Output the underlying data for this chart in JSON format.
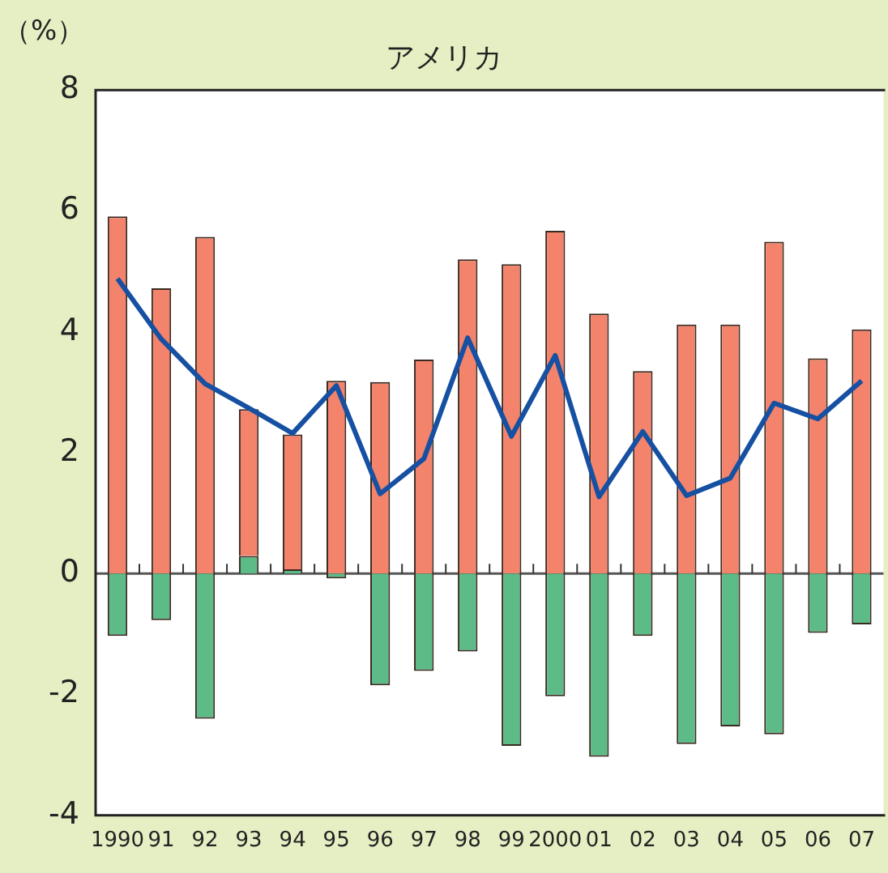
{
  "chart_data": {
    "type": "bar",
    "title": "アメリカ",
    "ylabel": "（%）",
    "stacked": true,
    "categories": [
      "1990",
      "91",
      "92",
      "93",
      "94",
      "95",
      "96",
      "97",
      "98",
      "99",
      "2000",
      "01",
      "02",
      "03",
      "04",
      "05",
      "06",
      "07"
    ],
    "series": [
      {
        "color": "#5cbb86",
        "values": [
          -1.03,
          -0.77,
          -2.4,
          0.29,
          0.07,
          -0.08,
          -1.85,
          -1.61,
          -1.29,
          -2.85,
          -2.03,
          -3.03,
          -1.03,
          -2.82,
          -2.53,
          -2.66,
          -0.98,
          -0.84
        ]
      },
      {
        "color": "#f4836b",
        "values": [
          5.91,
          4.72,
          5.57,
          2.43,
          2.23,
          3.19,
          3.17,
          3.54,
          5.2,
          5.12,
          5.67,
          4.3,
          3.35,
          4.12,
          4.12,
          5.49,
          3.56,
          4.04
        ]
      },
      {
        "type": "line",
        "color": "#1650a2",
        "values": [
          4.88,
          3.88,
          3.14,
          2.74,
          2.32,
          3.11,
          1.32,
          1.9,
          3.9,
          2.27,
          3.61,
          1.27,
          2.35,
          1.29,
          1.58,
          2.82,
          2.56,
          3.19
        ]
      }
    ],
    "ylim": [
      -4,
      8
    ],
    "yticks": [
      -4,
      -2,
      0,
      2,
      4,
      6,
      8
    ],
    "ref_lines": [
      {
        "axis": "y",
        "value": 0
      }
    ],
    "grid": false,
    "legend": false,
    "marker": "none",
    "line_style": "solid"
  }
}
